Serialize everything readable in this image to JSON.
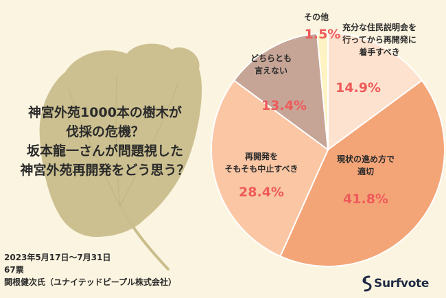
{
  "title_lines": [
    "神宮外苑1000本の樹木が",
    "伐採の危機？",
    "坂本龍一さんが問題視した",
    "神宮外苑再開発をどう思う？"
  ],
  "footer": {
    "period": "2023年5月17日〜7月31日",
    "votes": "67票",
    "author": "関根健次氏（ユナイテッドピープル株式会社）"
  },
  "brand": {
    "name": "Surfvote"
  },
  "colors": {
    "background": "#fbf4e0",
    "leaf": "#c9bd8c",
    "value_text": "#ee5a5a",
    "label_text": "#2a2a2a",
    "brand": "#1f2a44"
  },
  "chart_data": {
    "type": "pie",
    "start_angle_deg": 0,
    "direction": "clockwise",
    "slices": [
      {
        "label": "充分な住民説明会を\n行ってから再開発に\n着手すべき",
        "value": 14.9,
        "value_label": "14.9%",
        "color": "#fde3cf"
      },
      {
        "label": "現状の進め方で\n適切",
        "value": 41.8,
        "value_label": "41.8%",
        "color": "#f4a578"
      },
      {
        "label": "再開発を\nそもそも中止すべき",
        "value": 28.4,
        "value_label": "28.4%",
        "color": "#fac6a4"
      },
      {
        "label": "どちらとも\n言えない",
        "value": 13.4,
        "value_label": "13.4%",
        "color": "#c6a597"
      },
      {
        "label": "その他",
        "value": 1.5,
        "value_label": "1.5%",
        "color": "#fdf3c3"
      }
    ]
  }
}
